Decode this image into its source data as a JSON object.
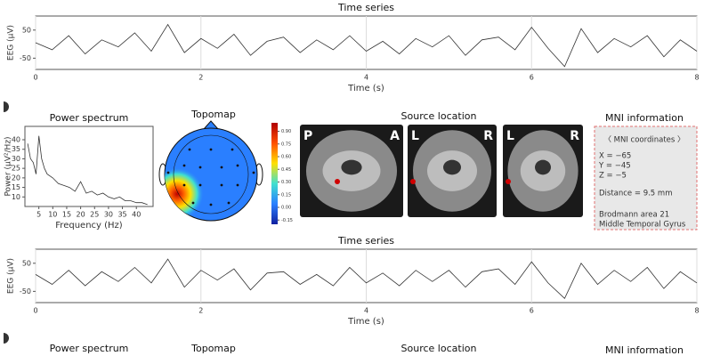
{
  "chart_data": [
    {
      "type": "line",
      "title": "Time series",
      "x_label": "Time (s)",
      "y_label": "EEG (μV)",
      "x": [
        0,
        0.2,
        0.4,
        0.6,
        0.8,
        1,
        1.2,
        1.4,
        1.6,
        1.8,
        2,
        2.2,
        2.4,
        2.6,
        2.8,
        3,
        3.2,
        3.4,
        3.6,
        3.8,
        4,
        4.2,
        4.4,
        4.6,
        4.8,
        5,
        5.2,
        5.4,
        5.6,
        5.8,
        6,
        6.2,
        6.4,
        6.6,
        6.8,
        7,
        7.2,
        7.4,
        7.6,
        7.8,
        8
      ],
      "values": [
        5,
        -20,
        30,
        -35,
        15,
        -10,
        40,
        -25,
        70,
        -30,
        20,
        -15,
        35,
        -40,
        10,
        25,
        -30,
        15,
        -20,
        30,
        -25,
        10,
        -35,
        20,
        -10,
        30,
        -40,
        15,
        25,
        -20,
        60,
        -15,
        -80,
        55,
        -30,
        20,
        -10,
        30,
        -45,
        15,
        -25
      ],
      "color": "#333333",
      "xlim": [
        0,
        8
      ],
      "ylim": [
        -90,
        100
      ],
      "xticks": [
        0,
        2,
        4,
        6,
        8
      ],
      "yticks": [
        -50,
        50
      ],
      "grid": true
    },
    {
      "type": "line",
      "title": "Power spectrum",
      "x_label": "Frequency (Hz)",
      "y_label": "Power (μV²/Hz)",
      "x": [
        1,
        2,
        3,
        4,
        5,
        6,
        7,
        8,
        10,
        12,
        14,
        16,
        18,
        20,
        22,
        24,
        26,
        28,
        30,
        32,
        34,
        36,
        38,
        40,
        42,
        44
      ],
      "values": [
        38,
        30,
        28,
        22,
        42,
        30,
        25,
        22,
        20,
        17,
        16,
        15,
        13,
        18,
        12,
        13,
        11,
        12,
        10,
        9,
        10,
        8,
        8,
        7,
        7,
        6
      ],
      "color": "#333333",
      "xlim": [
        0,
        46
      ],
      "ylim": [
        5,
        47
      ],
      "xticks": [
        5,
        10,
        15,
        20,
        25,
        30,
        35,
        40
      ],
      "yticks": [
        10,
        15,
        20,
        25,
        30,
        35,
        40
      ],
      "grid": false
    },
    {
      "type": "topomap",
      "title": "Topomap",
      "clim": [
        -0.2,
        1.0
      ],
      "colorbar_ticks": [
        {
          "value": 0.9,
          "label": "0.90"
        },
        {
          "value": 0.75,
          "label": "0.75"
        },
        {
          "value": 0.6,
          "label": "0.60"
        },
        {
          "value": 0.45,
          "label": "0.45"
        },
        {
          "value": 0.3,
          "label": "0.30"
        },
        {
          "value": 0.15,
          "label": "0.15"
        },
        {
          "value": 0,
          "label": "0.00"
        },
        {
          "value": -0.15,
          "label": "-0.15"
        }
      ]
    },
    {
      "type": "line",
      "title": "Time series",
      "x_label": "Time (s)",
      "y_label": "EEG (μV)",
      "x": [
        0,
        0.2,
        0.4,
        0.6,
        0.8,
        1,
        1.2,
        1.4,
        1.6,
        1.8,
        2,
        2.2,
        2.4,
        2.6,
        2.8,
        3,
        3.2,
        3.4,
        3.6,
        3.8,
        4,
        4.2,
        4.4,
        4.6,
        4.8,
        5,
        5.2,
        5.4,
        5.6,
        5.8,
        6,
        6.2,
        6.4,
        6.6,
        6.8,
        7,
        7.2,
        7.4,
        7.6,
        7.8,
        8
      ],
      "values": [
        10,
        -25,
        25,
        -30,
        20,
        -15,
        35,
        -20,
        65,
        -35,
        25,
        -10,
        30,
        -45,
        15,
        20,
        -25,
        10,
        -30,
        35,
        -20,
        15,
        -30,
        25,
        -15,
        25,
        -35,
        20,
        30,
        -25,
        55,
        -20,
        -75,
        50,
        -25,
        25,
        -15,
        35,
        -40,
        20,
        -20
      ],
      "color": "#333333",
      "xlim": [
        0,
        8
      ],
      "ylim": [
        -90,
        100
      ],
      "xticks": [
        0,
        2,
        4,
        6,
        8
      ],
      "yticks": [
        -50,
        50
      ],
      "grid": true
    }
  ],
  "source_location": {
    "title": "Source location",
    "views": [
      {
        "left": "P",
        "right": "A"
      },
      {
        "left": "L",
        "right": "R"
      },
      {
        "left": "L",
        "right": "R"
      }
    ]
  },
  "mni_information": {
    "title": "MNI information",
    "lines": [
      "〈 MNI coordinates 〉",
      "X = −65",
      "Y = −45",
      "Z = −5",
      "Distance = 9.5 mm",
      "Brodmann area 21",
      "Middle Temporal Gyrus"
    ]
  },
  "next_row_titles": [
    "Power spectrum",
    "Topomap",
    "Source location",
    "MNI information"
  ]
}
